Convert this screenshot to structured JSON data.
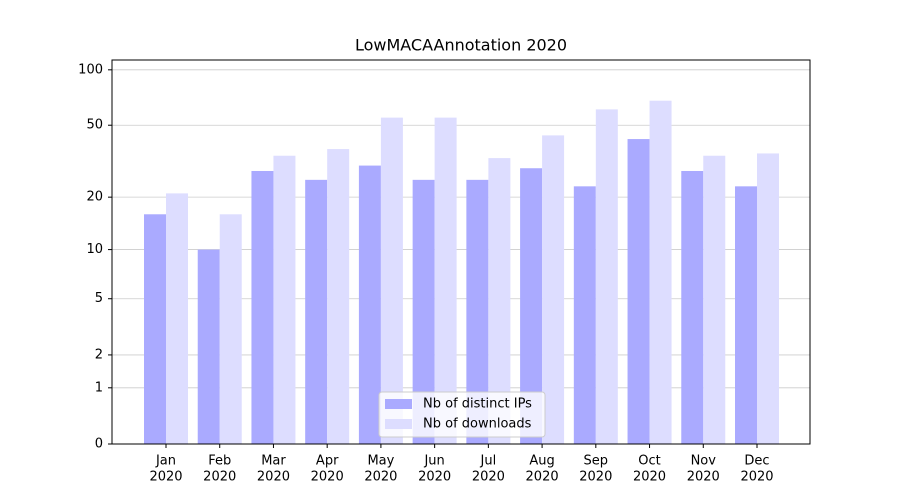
{
  "chart_data": {
    "type": "bar",
    "title": "LowMACAAnnotation 2020",
    "scale": "log1p",
    "categories": [
      [
        "Jan",
        "2020"
      ],
      [
        "Feb",
        "2020"
      ],
      [
        "Mar",
        "2020"
      ],
      [
        "Apr",
        "2020"
      ],
      [
        "May",
        "2020"
      ],
      [
        "Jun",
        "2020"
      ],
      [
        "Jul",
        "2020"
      ],
      [
        "Aug",
        "2020"
      ],
      [
        "Sep",
        "2020"
      ],
      [
        "Oct",
        "2020"
      ],
      [
        "Nov",
        "2020"
      ],
      [
        "Dec",
        "2020"
      ]
    ],
    "series": [
      {
        "name": "Nb of distinct IPs",
        "color": "#aaaaff",
        "values": [
          16,
          10,
          28,
          25,
          30,
          25,
          25,
          29,
          23,
          42,
          28,
          23
        ]
      },
      {
        "name": "Nb of downloads",
        "color": "#ddddff",
        "values": [
          21,
          16,
          34,
          37,
          55,
          55,
          33,
          44,
          61,
          68,
          34,
          35
        ]
      }
    ],
    "ylim": [
      0,
      113
    ],
    "yticks": [
      0,
      1,
      2,
      5,
      10,
      20,
      50,
      100
    ],
    "grid": true,
    "legend": "lower center"
  }
}
